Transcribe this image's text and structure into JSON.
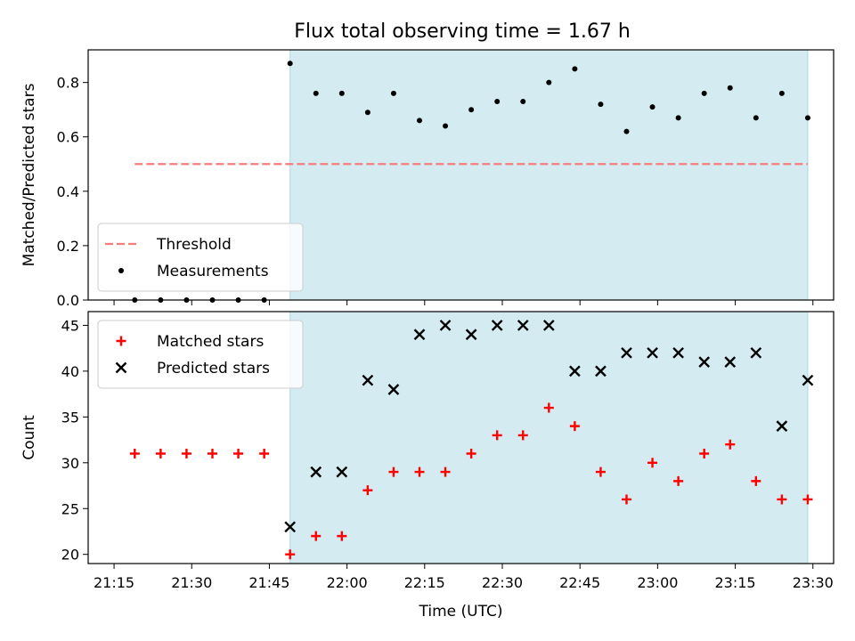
{
  "title": "Flux total observing time = 1.67 h",
  "chart_data": [
    {
      "type": "scatter",
      "ylabel": "Matched/Predicted stars",
      "ylim": [
        0,
        0.92
      ],
      "yticks": [
        0.0,
        0.2,
        0.4,
        0.6,
        0.8
      ],
      "ytick_labels": [
        "0.0",
        "0.2",
        "0.4",
        "0.6",
        "0.8"
      ],
      "grid": false,
      "legend_position": "lower-left",
      "observing_window": {
        "start": "21:49",
        "end": "23:29",
        "color": "#add8e6"
      },
      "series": [
        {
          "name": "Threshold",
          "kind": "dashed-line",
          "color": "#f77d7d",
          "x": [
            "21:19",
            "23:29"
          ],
          "y": [
            0.5,
            0.5
          ]
        },
        {
          "name": "Measurements",
          "kind": "dot",
          "color": "#000000",
          "x": [
            "21:19",
            "21:24",
            "21:29",
            "21:34",
            "21:39",
            "21:44",
            "21:49",
            "21:54",
            "21:59",
            "22:04",
            "22:09",
            "22:14",
            "22:19",
            "22:24",
            "22:29",
            "22:34",
            "22:39",
            "22:44",
            "22:49",
            "22:54",
            "22:59",
            "23:04",
            "23:09",
            "23:14",
            "23:19",
            "23:24",
            "23:29"
          ],
          "y": [
            0,
            0,
            0,
            0,
            0,
            0,
            0.87,
            0.76,
            0.76,
            0.69,
            0.76,
            0.66,
            0.64,
            0.7,
            0.73,
            0.73,
            0.8,
            0.85,
            0.72,
            0.62,
            0.71,
            0.67,
            0.76,
            0.78,
            0.67,
            0.76,
            0.67
          ]
        }
      ]
    },
    {
      "type": "scatter",
      "xlabel": "Time (UTC)",
      "ylabel": "Count",
      "ylim": [
        19,
        46.5
      ],
      "yticks": [
        20,
        25,
        30,
        35,
        40,
        45
      ],
      "ytick_labels": [
        "20",
        "25",
        "30",
        "35",
        "40",
        "45"
      ],
      "xticks": [
        "21:15",
        "21:30",
        "21:45",
        "22:00",
        "22:15",
        "22:30",
        "22:45",
        "23:00",
        "23:15",
        "23:30"
      ],
      "grid": false,
      "legend_position": "upper-left",
      "observing_window": {
        "start": "21:49",
        "end": "23:29",
        "color": "#add8e6"
      },
      "series": [
        {
          "name": "Matched stars",
          "kind": "plus",
          "color": "#ff0000",
          "x": [
            "21:19",
            "21:24",
            "21:29",
            "21:34",
            "21:39",
            "21:44",
            "21:49",
            "21:54",
            "21:59",
            "22:04",
            "22:09",
            "22:14",
            "22:19",
            "22:24",
            "22:29",
            "22:34",
            "22:39",
            "22:44",
            "22:49",
            "22:54",
            "22:59",
            "23:04",
            "23:09",
            "23:14",
            "23:19",
            "23:24",
            "23:29"
          ],
          "y": [
            31,
            31,
            31,
            31,
            31,
            31,
            20,
            22,
            22,
            27,
            29,
            29,
            29,
            31,
            33,
            33,
            36,
            34,
            29,
            26,
            30,
            28,
            31,
            32,
            28,
            26,
            26
          ]
        },
        {
          "name": "Predicted stars",
          "kind": "x",
          "color": "#000000",
          "x": [
            "21:49",
            "21:54",
            "21:59",
            "22:04",
            "22:09",
            "22:14",
            "22:19",
            "22:24",
            "22:29",
            "22:34",
            "22:39",
            "22:44",
            "22:49",
            "22:54",
            "22:59",
            "23:04",
            "23:09",
            "23:14",
            "23:19",
            "23:24",
            "23:29"
          ],
          "y": [
            23,
            29,
            29,
            39,
            38,
            44,
            45,
            44,
            45,
            45,
            45,
            40,
            40,
            42,
            42,
            42,
            41,
            41,
            42,
            34,
            39
          ]
        }
      ]
    }
  ]
}
